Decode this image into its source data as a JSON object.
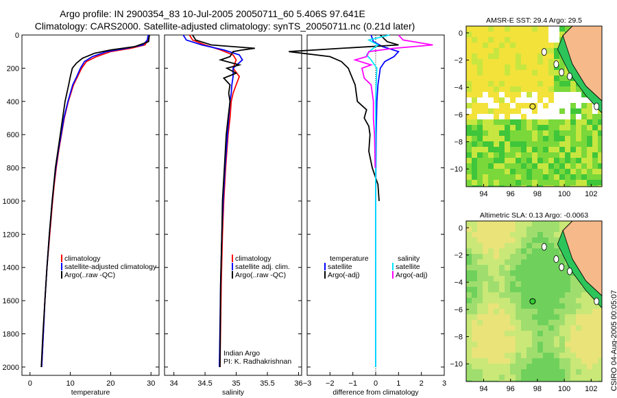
{
  "title_line1": "Argo profile: IN 2900354_83 10-Jul-2005 20050711_60 5.406S 97.641E",
  "title_line2": "Climatology: CARS2000. Satellite-adjusted climatology: synTS_20050711.nc (0.21d later)",
  "side_label": "CSIRO 04-Aug-2005 00:05:07",
  "colors": {
    "climatology": "#ff0000",
    "satellite": "#0000ff",
    "argo": "#000000",
    "salinity": "#00e5ff",
    "salinity_sat": "#00e5ff",
    "salinity_argo": "#ff00ff",
    "ocean_green": "#33cc33",
    "land": "#f5b98a"
  },
  "chart_data": [
    {
      "type": "line",
      "id": "temperature",
      "xlabel": "temperature",
      "ylabel": "",
      "xlim": [
        -2,
        32
      ],
      "ylim": [
        2050,
        0
      ],
      "xticks": [
        0,
        10,
        20,
        30
      ],
      "yticks": [
        0,
        200,
        400,
        600,
        800,
        1000,
        1200,
        1400,
        1600,
        1800,
        2000
      ],
      "legend": [
        "climatology",
        "satellite-adjusted climatology",
        "Argo(..raw -QC)"
      ],
      "series": [
        {
          "name": "climatology",
          "depth": [
            0,
            30,
            60,
            80,
            100,
            130,
            160,
            200,
            250,
            300,
            400,
            500,
            600,
            700,
            800,
            900,
            1000,
            1200,
            1400,
            1600,
            1800,
            2000
          ],
          "values": [
            29.5,
            29.3,
            28.5,
            25,
            20,
            16.5,
            14,
            12.8,
            11.8,
            10.8,
            9.5,
            8.5,
            7.8,
            7.1,
            6.5,
            6.0,
            5.6,
            4.9,
            4.2,
            3.7,
            3.3,
            2.9
          ]
        },
        {
          "name": "satellite-adjusted climatology",
          "depth": [
            0,
            30,
            60,
            80,
            100,
            130,
            160,
            200,
            250,
            300,
            400,
            500,
            600,
            700,
            800,
            900,
            1000,
            1200,
            1400,
            1600,
            1800,
            2000
          ],
          "values": [
            29.3,
            29.1,
            28,
            24,
            19,
            15.5,
            13.5,
            12.5,
            11.6,
            10.6,
            9.4,
            8.4,
            7.7,
            7.0,
            6.4,
            5.9,
            5.5,
            4.8,
            4.2,
            3.7,
            3.3,
            2.9
          ]
        },
        {
          "name": "Argo(..raw -QC)",
          "depth": [
            0,
            40,
            70,
            90,
            110,
            140,
            170,
            200,
            250,
            300,
            400,
            500,
            600,
            700,
            800,
            900,
            1000,
            1200,
            1400,
            1600,
            1800,
            2000
          ],
          "values": [
            29.6,
            29.4,
            26,
            20,
            16,
            13,
            11.5,
            10.5,
            10.0,
            9.6,
            8.7,
            8.1,
            7.5,
            6.9,
            6.3,
            5.9,
            5.5,
            4.8,
            4.2,
            3.7,
            3.2,
            2.8
          ]
        }
      ]
    },
    {
      "type": "line",
      "id": "salinity",
      "xlabel": "salinity",
      "ylabel": "",
      "xlim": [
        33.85,
        36.05
      ],
      "ylim": [
        2050,
        0
      ],
      "xticks": [
        34,
        34.5,
        35,
        35.5,
        36
      ],
      "legend": [
        "climatology",
        "satellite adj. clim.",
        "Argo(..raw -QC)"
      ],
      "annotation": [
        "Indian Argo",
        "PI: K. Radhakrishnan"
      ],
      "series": [
        {
          "name": "climatology",
          "depth": [
            0,
            30,
            60,
            90,
            120,
            150,
            200,
            250,
            300,
            350,
            400,
            500,
            600,
            800,
            1000,
            1200,
            1500,
            2000
          ],
          "values": [
            34.25,
            34.3,
            34.5,
            34.75,
            34.95,
            35.0,
            34.95,
            35.05,
            35.0,
            34.95,
            34.92,
            34.9,
            34.87,
            34.83,
            34.8,
            34.78,
            34.76,
            34.74
          ]
        },
        {
          "name": "satellite adj. clim.",
          "depth": [
            0,
            30,
            60,
            90,
            120,
            150,
            200,
            250,
            300,
            350,
            400,
            500,
            600,
            800,
            1000,
            1200,
            1500,
            2000
          ],
          "values": [
            34.15,
            34.2,
            34.45,
            34.8,
            35.05,
            35.1,
            34.95,
            34.95,
            34.93,
            34.92,
            34.9,
            34.88,
            34.86,
            34.82,
            34.79,
            34.77,
            34.75,
            34.73
          ]
        },
        {
          "name": "Argo(..raw -QC)",
          "depth": [
            0,
            30,
            60,
            80,
            90,
            100,
            130,
            150,
            180,
            200,
            230,
            260,
            300,
            350,
            400,
            500,
            600,
            800,
            1000,
            1200,
            1500,
            2000
          ],
          "values": [
            34.3,
            34.35,
            34.6,
            35.3,
            35.1,
            34.95,
            34.9,
            34.75,
            35.05,
            34.85,
            35.0,
            34.8,
            34.9,
            34.88,
            34.9,
            34.87,
            34.84,
            34.81,
            34.78,
            34.77,
            34.75,
            34.74
          ]
        }
      ]
    },
    {
      "type": "line",
      "id": "difference",
      "xlabel": "difference from climatology",
      "ylabel": "",
      "xlim": [
        -3,
        3
      ],
      "ylim": [
        2050,
        0
      ],
      "xticks": [
        -3,
        -2,
        -1,
        0,
        1,
        2,
        3
      ],
      "legend_left": [
        "temperature",
        "satellite",
        "Argo(-adj)"
      ],
      "legend_right": [
        "salinity",
        "satellite",
        "Argo(-adj)"
      ],
      "series": [
        {
          "name": "temperature satellite",
          "depth": [
            0,
            40,
            70,
            100,
            130,
            160,
            200,
            300,
            400,
            600,
            800,
            1000,
            1400,
            2000
          ],
          "values": [
            -0.2,
            -0.1,
            0.3,
            1.0,
            0.8,
            0.4,
            0.2,
            0.1,
            0.05,
            0.02,
            0.01,
            0.0,
            0.0,
            0.0
          ]
        },
        {
          "name": "temperature Argo(-adj)",
          "depth": [
            0,
            40,
            60,
            80,
            100,
            130,
            160,
            200,
            300,
            400,
            450,
            500,
            550,
            600,
            700,
            800,
            900,
            1000
          ],
          "values": [
            0.2,
            0.5,
            1.0,
            -1.5,
            -3.8,
            -2.0,
            -1.5,
            -1.2,
            -0.9,
            -0.8,
            -0.4,
            -0.5,
            -0.3,
            -0.25,
            -0.3,
            -0.15,
            0.1,
            0.15
          ]
        },
        {
          "name": "salinity satellite",
          "depth": [
            0,
            30,
            60,
            90,
            120,
            150,
            200,
            300,
            400,
            600,
            1000,
            2000
          ],
          "values": [
            0.6,
            -0.3,
            0.1,
            -0.2,
            -0.4,
            -0.2,
            0.05,
            0.02,
            0.0,
            0.0,
            0.0,
            0.0
          ]
        },
        {
          "name": "salinity Argo(-adj)",
          "depth": [
            0,
            30,
            60,
            80,
            100,
            130,
            150,
            180,
            200,
            260,
            300,
            400,
            500,
            600,
            800
          ],
          "values": [
            1.0,
            1.2,
            2.5,
            0.8,
            -0.3,
            -0.4,
            -0.9,
            -0.2,
            -0.6,
            -0.5,
            -0.2,
            -0.1,
            -0.1,
            -0.05,
            -0.02
          ]
        }
      ]
    },
    {
      "type": "heatmap",
      "id": "sst_map",
      "title": "AMSR-E SST: 29.4 Argo: 29.5",
      "xlim": [
        92.7,
        102.8
      ],
      "ylim": [
        -11.3,
        0.5
      ],
      "xticks": [
        94,
        96,
        98,
        100,
        102
      ],
      "yticks": [
        0,
        -2,
        -4,
        -6,
        -8,
        -10
      ],
      "marker": {
        "lon": 97.641,
        "lat": -5.406,
        "fill": "none"
      }
    },
    {
      "type": "heatmap",
      "id": "sla_map",
      "title": "Altimetric SLA: 0.13 Argo: -0.0063",
      "xlim": [
        92.7,
        102.8
      ],
      "ylim": [
        -11.3,
        0.5
      ],
      "xticks": [
        94,
        96,
        98,
        100,
        102
      ],
      "yticks": [
        0,
        -2,
        -4,
        -6,
        -8,
        -10
      ],
      "marker": {
        "lon": 97.641,
        "lat": -5.406,
        "fill": "#33cc33"
      }
    }
  ]
}
